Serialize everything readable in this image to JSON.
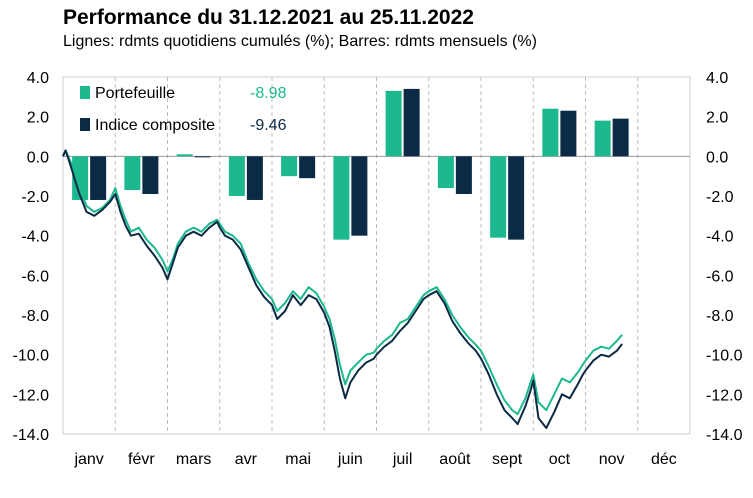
{
  "header": {
    "title": "Performance du 31.12.2021 au 25.11.2022",
    "subtitle": "Lignes: rdmts quotidiens cumulés (%); Barres: rdmts mensuels (%)"
  },
  "colors": {
    "portfolio": "#1cb88e",
    "index": "#0b2a45",
    "grid": "#bdbdbd"
  },
  "legend": [
    {
      "name": "Portefeuille",
      "value": "-8.98"
    },
    {
      "name": "Indice composite",
      "value": "-9.46"
    }
  ],
  "chart_data": {
    "type": "bar+line",
    "ylim": [
      -14,
      4
    ],
    "yticks": [
      "4.0",
      "2.0",
      "0.0",
      "-2.0",
      "-4.0",
      "-6.0",
      "-8.0",
      "-10.0",
      "-12.0",
      "-14.0"
    ],
    "categories": [
      "janv",
      "févr",
      "mars",
      "avr",
      "mai",
      "juin",
      "juil",
      "août",
      "sept",
      "oct",
      "nov",
      "déc"
    ],
    "bar_series": [
      {
        "name": "Portefeuille",
        "values": [
          -2.2,
          -1.7,
          0.1,
          -2.0,
          -1.0,
          -4.2,
          3.3,
          -1.6,
          -4.1,
          2.4,
          1.8,
          null
        ]
      },
      {
        "name": "Indice composite",
        "values": [
          -2.2,
          -1.9,
          0.0,
          -2.2,
          -1.1,
          -4.0,
          3.4,
          -1.9,
          -4.2,
          2.3,
          1.9,
          null
        ]
      }
    ],
    "line_series": [
      {
        "name": "Portefeuille",
        "points": [
          [
            0,
            0
          ],
          [
            0.05,
            0.3
          ],
          [
            0.15,
            -0.3
          ],
          [
            0.3,
            -1.5
          ],
          [
            0.45,
            -2.5
          ],
          [
            0.6,
            -2.8
          ],
          [
            0.75,
            -2.6
          ],
          [
            0.9,
            -2.2
          ],
          [
            1.0,
            -1.6
          ],
          [
            1.1,
            -2.5
          ],
          [
            1.2,
            -3.2
          ],
          [
            1.3,
            -3.8
          ],
          [
            1.45,
            -3.6
          ],
          [
            1.6,
            -4.2
          ],
          [
            1.75,
            -4.6
          ],
          [
            1.9,
            -5.2
          ],
          [
            2.0,
            -5.8
          ],
          [
            2.1,
            -5.2
          ],
          [
            2.2,
            -4.4
          ],
          [
            2.35,
            -3.8
          ],
          [
            2.5,
            -3.6
          ],
          [
            2.65,
            -3.8
          ],
          [
            2.8,
            -3.4
          ],
          [
            2.95,
            -3.2
          ],
          [
            3.0,
            -3.4
          ],
          [
            3.1,
            -3.8
          ],
          [
            3.25,
            -4.0
          ],
          [
            3.4,
            -4.4
          ],
          [
            3.55,
            -5.4
          ],
          [
            3.7,
            -6.2
          ],
          [
            3.85,
            -6.8
          ],
          [
            4.0,
            -7.2
          ],
          [
            4.1,
            -7.8
          ],
          [
            4.25,
            -7.4
          ],
          [
            4.4,
            -6.8
          ],
          [
            4.55,
            -7.2
          ],
          [
            4.7,
            -6.6
          ],
          [
            4.85,
            -6.9
          ],
          [
            5.0,
            -7.6
          ],
          [
            5.1,
            -8.2
          ],
          [
            5.2,
            -9.2
          ],
          [
            5.3,
            -10.5
          ],
          [
            5.4,
            -11.5
          ],
          [
            5.5,
            -10.8
          ],
          [
            5.65,
            -10.4
          ],
          [
            5.8,
            -10.0
          ],
          [
            5.95,
            -9.9
          ],
          [
            6.0,
            -9.7
          ],
          [
            6.15,
            -9.3
          ],
          [
            6.3,
            -9.0
          ],
          [
            6.45,
            -8.4
          ],
          [
            6.6,
            -8.2
          ],
          [
            6.75,
            -7.6
          ],
          [
            6.9,
            -7.0
          ],
          [
            7.0,
            -6.8
          ],
          [
            7.15,
            -6.6
          ],
          [
            7.3,
            -7.2
          ],
          [
            7.45,
            -8.0
          ],
          [
            7.6,
            -8.6
          ],
          [
            7.75,
            -9.1
          ],
          [
            7.9,
            -9.5
          ],
          [
            8.0,
            -9.8
          ],
          [
            8.15,
            -10.6
          ],
          [
            8.3,
            -11.5
          ],
          [
            8.45,
            -12.3
          ],
          [
            8.6,
            -12.8
          ],
          [
            8.7,
            -13.0
          ],
          [
            8.85,
            -12.2
          ],
          [
            8.95,
            -11.4
          ],
          [
            9.0,
            -11.0
          ],
          [
            9.1,
            -12.4
          ],
          [
            9.25,
            -12.8
          ],
          [
            9.4,
            -12.0
          ],
          [
            9.55,
            -11.2
          ],
          [
            9.7,
            -11.4
          ],
          [
            9.85,
            -10.9
          ],
          [
            9.95,
            -10.5
          ],
          [
            10.0,
            -10.3
          ],
          [
            10.15,
            -9.8
          ],
          [
            10.3,
            -9.6
          ],
          [
            10.45,
            -9.7
          ],
          [
            10.6,
            -9.3
          ],
          [
            10.7,
            -9.0
          ]
        ]
      },
      {
        "name": "Indice composite",
        "points": [
          [
            0,
            0
          ],
          [
            0.05,
            0.3
          ],
          [
            0.15,
            -0.5
          ],
          [
            0.3,
            -1.8
          ],
          [
            0.45,
            -2.8
          ],
          [
            0.6,
            -3.0
          ],
          [
            0.75,
            -2.7
          ],
          [
            0.9,
            -2.3
          ],
          [
            1.0,
            -1.9
          ],
          [
            1.1,
            -2.8
          ],
          [
            1.2,
            -3.5
          ],
          [
            1.3,
            -4.0
          ],
          [
            1.45,
            -3.9
          ],
          [
            1.6,
            -4.5
          ],
          [
            1.75,
            -5.0
          ],
          [
            1.9,
            -5.6
          ],
          [
            2.0,
            -6.2
          ],
          [
            2.1,
            -5.4
          ],
          [
            2.2,
            -4.6
          ],
          [
            2.35,
            -4.0
          ],
          [
            2.5,
            -3.8
          ],
          [
            2.65,
            -4.0
          ],
          [
            2.8,
            -3.6
          ],
          [
            2.95,
            -3.3
          ],
          [
            3.0,
            -3.6
          ],
          [
            3.1,
            -4.0
          ],
          [
            3.25,
            -4.2
          ],
          [
            3.4,
            -4.7
          ],
          [
            3.55,
            -5.6
          ],
          [
            3.7,
            -6.5
          ],
          [
            3.85,
            -7.1
          ],
          [
            4.0,
            -7.5
          ],
          [
            4.1,
            -8.2
          ],
          [
            4.25,
            -7.8
          ],
          [
            4.4,
            -7.0
          ],
          [
            4.55,
            -7.5
          ],
          [
            4.7,
            -7.0
          ],
          [
            4.85,
            -7.2
          ],
          [
            5.0,
            -7.9
          ],
          [
            5.1,
            -8.6
          ],
          [
            5.2,
            -9.8
          ],
          [
            5.3,
            -11.2
          ],
          [
            5.4,
            -12.2
          ],
          [
            5.5,
            -11.4
          ],
          [
            5.65,
            -10.8
          ],
          [
            5.8,
            -10.4
          ],
          [
            5.95,
            -10.2
          ],
          [
            6.0,
            -10.0
          ],
          [
            6.15,
            -9.6
          ],
          [
            6.3,
            -9.3
          ],
          [
            6.45,
            -8.8
          ],
          [
            6.6,
            -8.4
          ],
          [
            6.75,
            -7.8
          ],
          [
            6.9,
            -7.2
          ],
          [
            7.0,
            -7.0
          ],
          [
            7.15,
            -6.8
          ],
          [
            7.3,
            -7.4
          ],
          [
            7.45,
            -8.3
          ],
          [
            7.6,
            -8.9
          ],
          [
            7.75,
            -9.4
          ],
          [
            7.9,
            -9.8
          ],
          [
            8.0,
            -10.2
          ],
          [
            8.15,
            -11.0
          ],
          [
            8.3,
            -12.0
          ],
          [
            8.45,
            -12.8
          ],
          [
            8.6,
            -13.2
          ],
          [
            8.7,
            -13.5
          ],
          [
            8.85,
            -12.6
          ],
          [
            8.95,
            -11.8
          ],
          [
            9.0,
            -11.3
          ],
          [
            9.1,
            -13.2
          ],
          [
            9.25,
            -13.7
          ],
          [
            9.4,
            -12.9
          ],
          [
            9.55,
            -12.0
          ],
          [
            9.7,
            -12.2
          ],
          [
            9.85,
            -11.5
          ],
          [
            9.95,
            -11.0
          ],
          [
            10.0,
            -10.8
          ],
          [
            10.15,
            -10.3
          ],
          [
            10.3,
            -10.0
          ],
          [
            10.45,
            -10.1
          ],
          [
            10.6,
            -9.8
          ],
          [
            10.7,
            -9.46
          ]
        ]
      }
    ],
    "grid": "vertical dashed at month boundaries",
    "legend_placement": "top-left"
  }
}
